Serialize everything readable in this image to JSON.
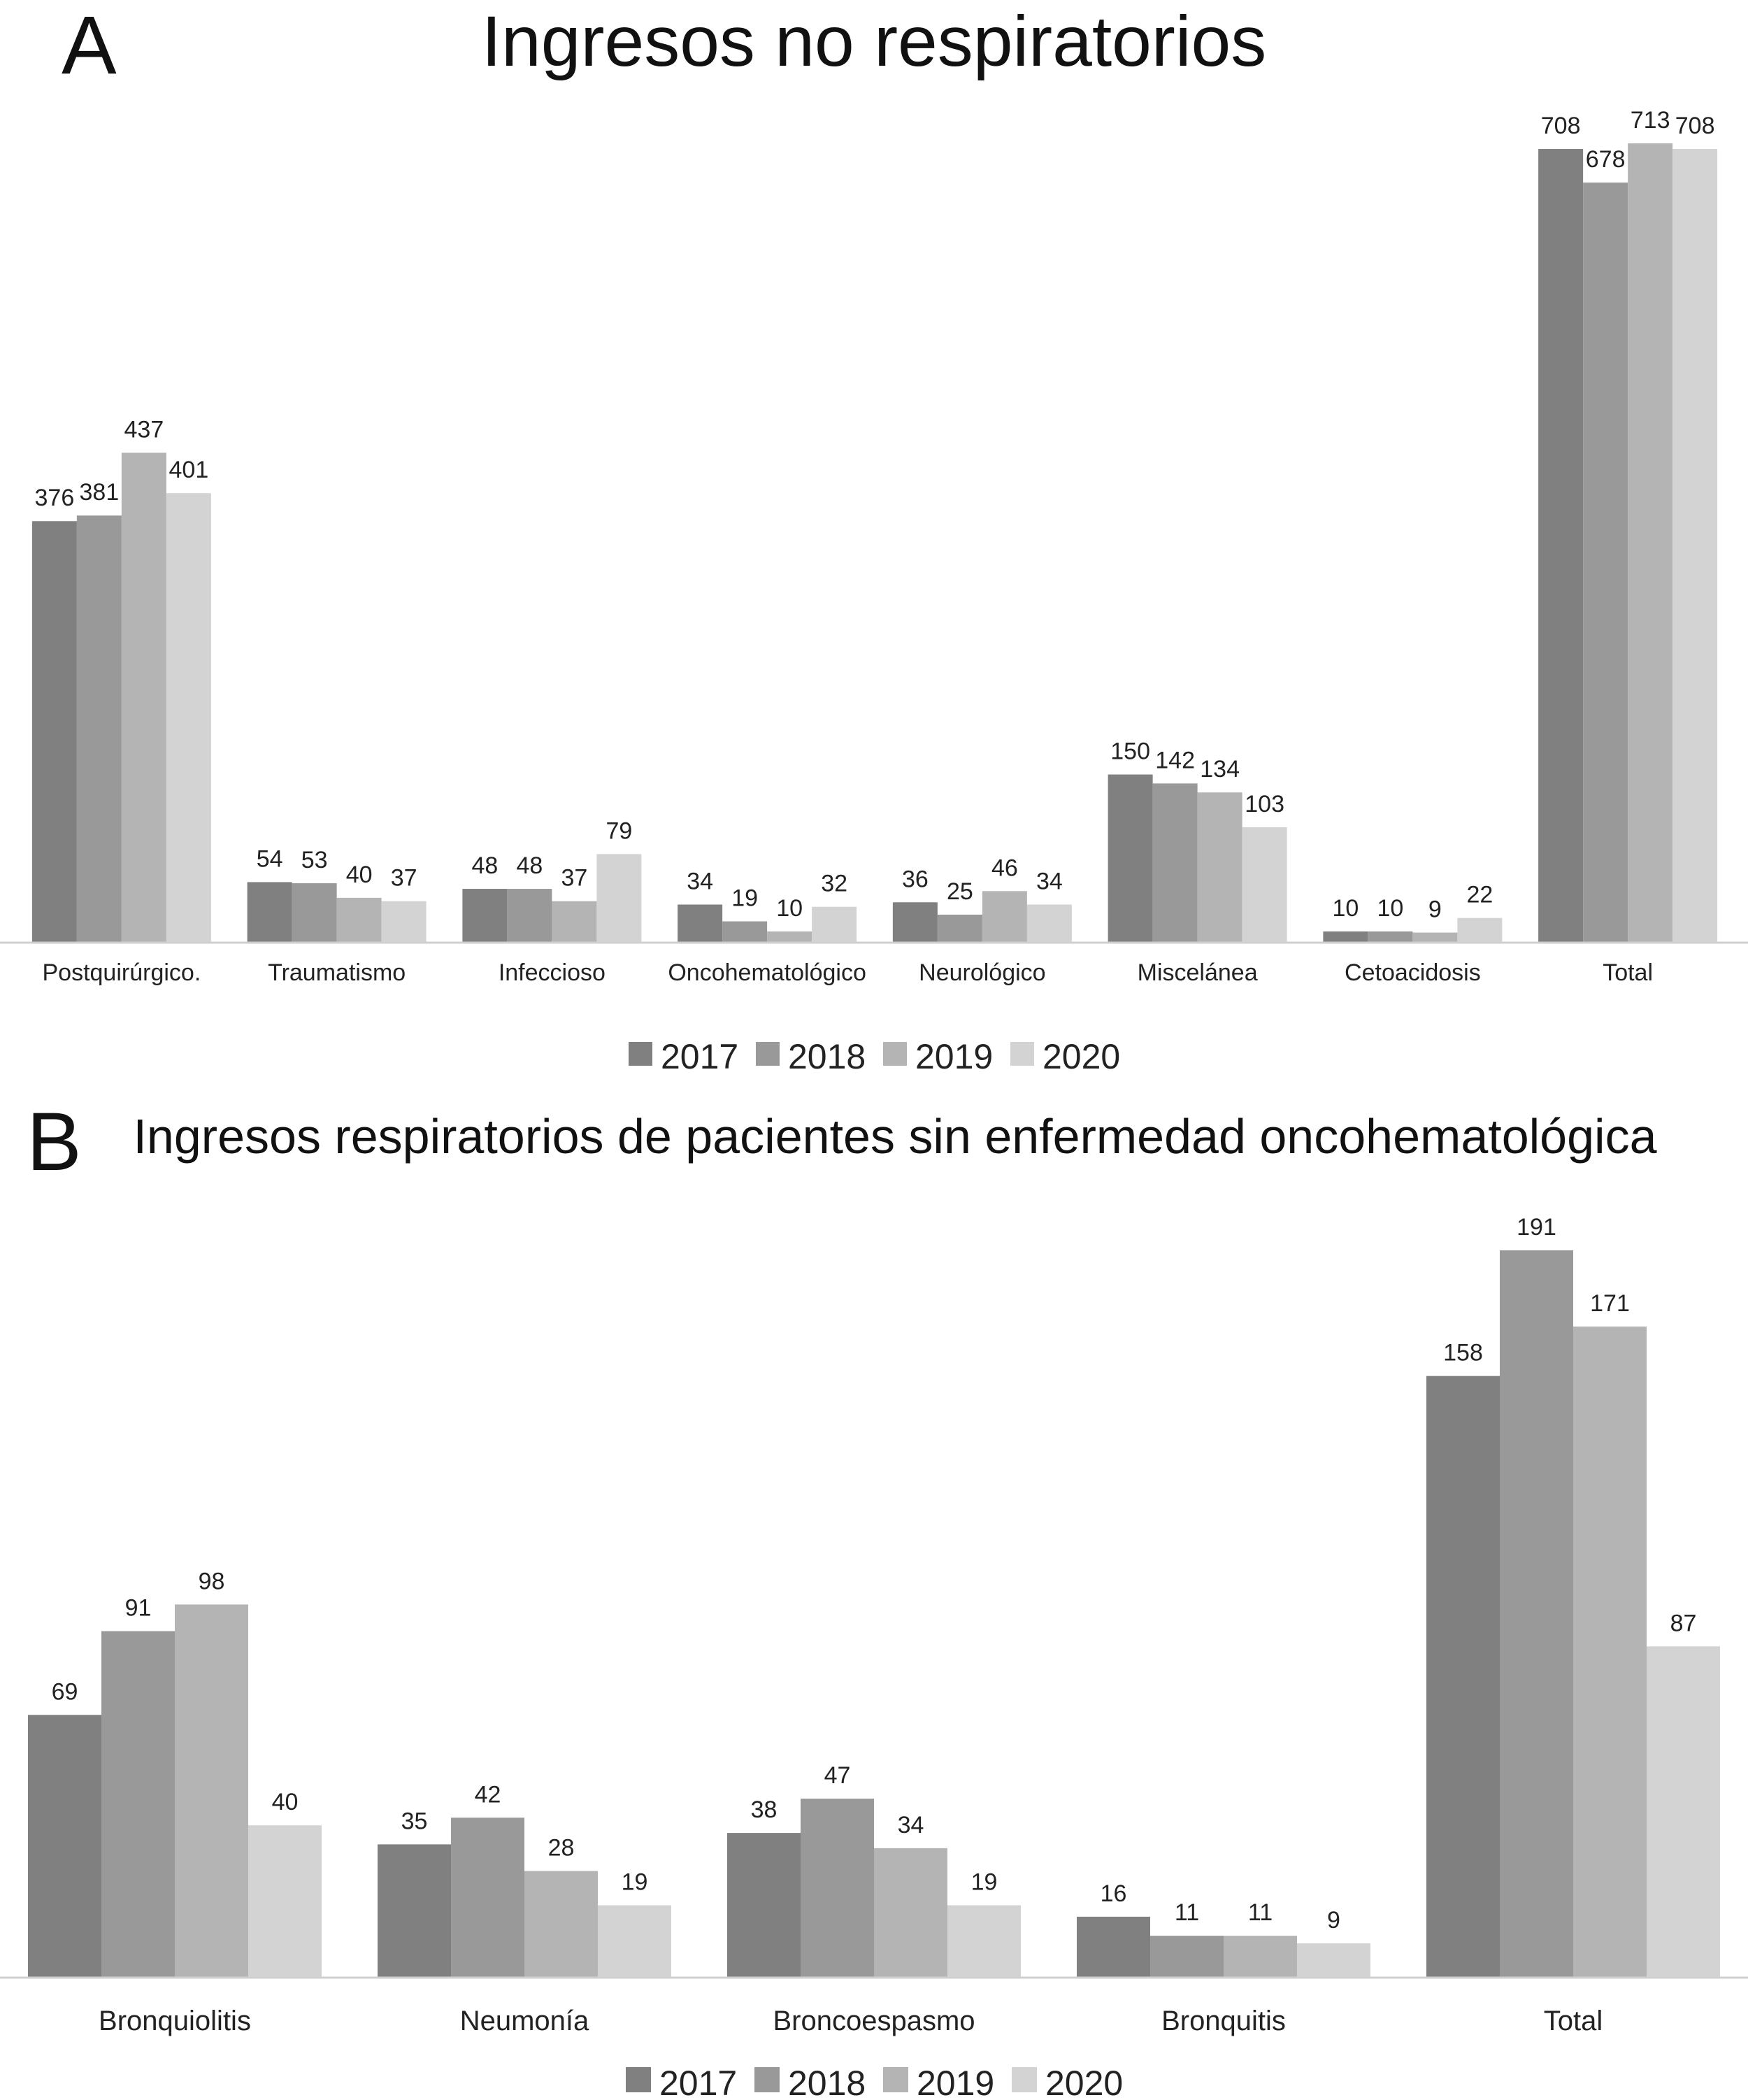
{
  "chart_data": [
    {
      "panel_label": "A",
      "type": "bar",
      "title": "Ingresos no respiratorios",
      "categories": [
        "Postquirúrgico.",
        "Traumatismo",
        "Infeccioso",
        "Oncohematológico",
        "Neurológico",
        "Miscelánea",
        "Cetoacidosis",
        "Total"
      ],
      "series": [
        {
          "name": "2017",
          "color": "#808080",
          "values": [
            376,
            54,
            48,
            34,
            36,
            150,
            10,
            708
          ]
        },
        {
          "name": "2018",
          "color": "#999999",
          "values": [
            381,
            53,
            48,
            19,
            25,
            142,
            10,
            678
          ]
        },
        {
          "name": "2019",
          "color": "#b4b4b4",
          "values": [
            437,
            40,
            37,
            10,
            46,
            134,
            9,
            713
          ]
        },
        {
          "name": "2020",
          "color": "#d3d3d3",
          "values": [
            401,
            37,
            79,
            32,
            34,
            103,
            22,
            708
          ]
        }
      ],
      "data_labels": true,
      "gridlines": false,
      "y_axis_visible": false,
      "legend_position": "bottom"
    },
    {
      "panel_label": "B",
      "type": "bar",
      "title": "Ingresos respiratorios de pacientes sin enfermedad oncohematológica",
      "categories": [
        "Bronquiolitis",
        "Neumonía",
        "Broncoespasmo",
        "Bronquitis",
        "Total"
      ],
      "series": [
        {
          "name": "2017",
          "color": "#808080",
          "values": [
            69,
            35,
            38,
            16,
            158
          ]
        },
        {
          "name": "2018",
          "color": "#999999",
          "values": [
            91,
            42,
            47,
            11,
            191
          ]
        },
        {
          "name": "2019",
          "color": "#b4b4b4",
          "values": [
            98,
            28,
            34,
            11,
            171
          ]
        },
        {
          "name": "2020",
          "color": "#d3d3d3",
          "values": [
            40,
            19,
            19,
            9,
            87
          ]
        }
      ],
      "data_labels": true,
      "gridlines": false,
      "y_axis_visible": false,
      "legend_position": "bottom"
    }
  ]
}
